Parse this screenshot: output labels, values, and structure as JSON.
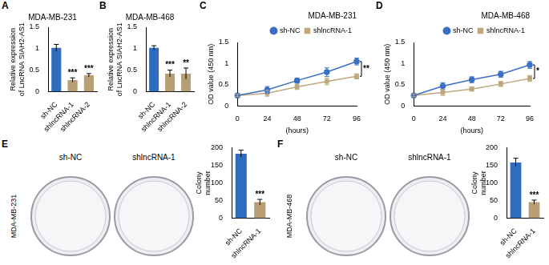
{
  "chart_data": [
    {
      "panel": "A",
      "type": "bar",
      "title": "MDA-MB-231",
      "y_label": "Relative expression of LncRNA SIAH2-AS1",
      "categories": [
        "sh-NC",
        "shlncRNA-1",
        "shlncRNA-2"
      ],
      "values": [
        1.02,
        0.27,
        0.38
      ],
      "errors": [
        0.08,
        0.05,
        0.04
      ],
      "significance": [
        null,
        "***",
        "***"
      ],
      "colors": [
        "#2f6cc0",
        "#b79e74",
        "#b79e74"
      ],
      "ylim": [
        0,
        1.5
      ],
      "yticks": [
        0,
        0.5,
        1,
        1.5
      ],
      "grid": false
    },
    {
      "panel": "B",
      "type": "bar",
      "title": "MDA-MB-468",
      "y_label": "Relative expression of LncRNA SIAH2-AS1",
      "categories": [
        "sh-NC",
        "shlncRNA-1",
        "shlncRNA-2"
      ],
      "values": [
        1.02,
        0.42,
        0.42
      ],
      "errors": [
        0.05,
        0.08,
        0.13
      ],
      "significance": [
        null,
        "***",
        "**"
      ],
      "colors": [
        "#2f6cc0",
        "#b79e74",
        "#b79e74"
      ],
      "ylim": [
        0,
        1.5
      ],
      "yticks": [
        0,
        0.5,
        1,
        1.5
      ],
      "grid": false
    },
    {
      "panel": "C",
      "type": "line",
      "title": "MDA-MB-231",
      "x_label": "(hours)",
      "y_label": "OD value (450 nm)",
      "x": [
        0,
        24,
        48,
        72,
        96
      ],
      "series": [
        {
          "name": "sh-NC",
          "color": "#3a6fc4",
          "marker": "circle",
          "values": [
            0.25,
            0.38,
            0.6,
            0.8,
            1.05
          ],
          "errors": [
            0.03,
            0.08,
            0.06,
            0.1,
            0.08
          ]
        },
        {
          "name": "shlncRNA-1",
          "color": "#bfa67e",
          "marker": "square",
          "values": [
            0.25,
            0.3,
            0.45,
            0.58,
            0.7
          ],
          "errors": [
            0.03,
            0.07,
            0.06,
            0.08,
            0.06
          ]
        }
      ],
      "significance": "**",
      "xlim": [
        0,
        96
      ],
      "xticks": [
        0,
        24,
        48,
        72,
        96
      ],
      "ylim": [
        0,
        1.5
      ],
      "yticks": [
        0,
        0.5,
        1,
        1.5
      ],
      "grid": false,
      "legend": "top"
    },
    {
      "panel": "D",
      "type": "line",
      "title": "MDA-MB-468",
      "x_label": "(hours)",
      "y_label": "OD value (450 nm)",
      "x": [
        0,
        24,
        48,
        72,
        96
      ],
      "series": [
        {
          "name": "sh-NC",
          "color": "#3a6fc4",
          "marker": "circle",
          "values": [
            0.25,
            0.47,
            0.62,
            0.75,
            0.97
          ],
          "errors": [
            0.03,
            0.08,
            0.07,
            0.07,
            0.08
          ]
        },
        {
          "name": "shlncRNA-1",
          "color": "#bfa67e",
          "marker": "square",
          "values": [
            0.25,
            0.32,
            0.4,
            0.52,
            0.65
          ],
          "errors": [
            0.03,
            0.07,
            0.05,
            0.06,
            0.07
          ]
        }
      ],
      "significance": "*",
      "xlim": [
        0,
        96
      ],
      "xticks": [
        0,
        24,
        48,
        72,
        96
      ],
      "ylim": [
        0,
        1.5
      ],
      "yticks": [
        0,
        0.5,
        1,
        1.5
      ],
      "grid": false,
      "legend": "top"
    },
    {
      "panel": "E",
      "type": "bar",
      "side_label": "MDA-MB-231",
      "plate_labels": [
        "sh-NC",
        "shlncRNA-1"
      ],
      "y_label": "Colony number",
      "categories": [
        "sh-NC",
        "shlncRNA-1"
      ],
      "values": [
        183,
        45
      ],
      "errors": [
        10,
        8
      ],
      "significance": [
        null,
        "***"
      ],
      "colors": [
        "#2f6cc0",
        "#b79e74"
      ],
      "ylim": [
        0,
        200
      ],
      "yticks": [
        0,
        50,
        100,
        150,
        200
      ],
      "grid": false
    },
    {
      "panel": "F",
      "type": "bar",
      "side_label": "MDA-MB-468",
      "plate_labels": [
        "sh-NC",
        "shlncRNA-1"
      ],
      "y_label": "Colony number",
      "categories": [
        "sh-NC",
        "shlncRNA-1"
      ],
      "values": [
        158,
        45
      ],
      "errors": [
        12,
        6
      ],
      "significance": [
        null,
        "***"
      ],
      "colors": [
        "#2f6cc0",
        "#b79e74"
      ],
      "ylim": [
        0,
        200
      ],
      "yticks": [
        0,
        50,
        100,
        150,
        200
      ],
      "grid": false
    }
  ]
}
